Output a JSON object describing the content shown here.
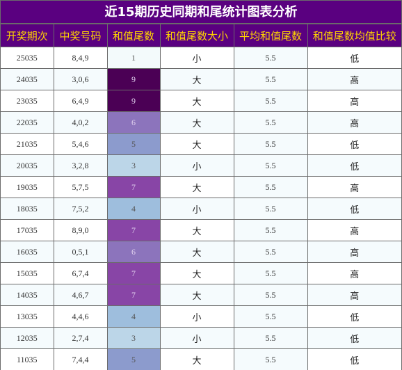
{
  "title": "近15期历史同期和尾统计图表分析",
  "headers": [
    "开奖期次",
    "中奖号码",
    "和值尾数",
    "和值尾数大小",
    "平均和值尾数",
    "和值尾数均值比较"
  ],
  "colors": {
    "header_bg": "#5a0080",
    "header_text": "#ffd400",
    "title_text": "#ffffff",
    "heat_scale": {
      "1": "#f3fafb",
      "3": "#bcd6e8",
      "4": "#9ebedd",
      "5": "#8c9bcd",
      "6": "#8c74bc",
      "7": "#8845a6",
      "9": "#4b0055"
    }
  },
  "chart_data": {
    "type": "table",
    "columns": [
      "开奖期次",
      "中奖号码",
      "和值尾数",
      "和值尾数大小",
      "平均和值尾数",
      "和值尾数均值比较"
    ],
    "rows": [
      [
        "25035",
        "8,4,9",
        "1",
        "小",
        "5.5",
        "低"
      ],
      [
        "24035",
        "3,0,6",
        "9",
        "大",
        "5.5",
        "高"
      ],
      [
        "23035",
        "6,4,9",
        "9",
        "大",
        "5.5",
        "高"
      ],
      [
        "22035",
        "4,0,2",
        "6",
        "大",
        "5.5",
        "高"
      ],
      [
        "21035",
        "5,4,6",
        "5",
        "大",
        "5.5",
        "低"
      ],
      [
        "20035",
        "3,2,8",
        "3",
        "小",
        "5.5",
        "低"
      ],
      [
        "19035",
        "5,7,5",
        "7",
        "大",
        "5.5",
        "高"
      ],
      [
        "18035",
        "7,5,2",
        "4",
        "小",
        "5.5",
        "低"
      ],
      [
        "17035",
        "8,9,0",
        "7",
        "大",
        "5.5",
        "高"
      ],
      [
        "16035",
        "0,5,1",
        "6",
        "大",
        "5.5",
        "高"
      ],
      [
        "15035",
        "6,7,4",
        "7",
        "大",
        "5.5",
        "高"
      ],
      [
        "14035",
        "4,6,7",
        "7",
        "大",
        "5.5",
        "高"
      ],
      [
        "13035",
        "4,4,6",
        "4",
        "小",
        "5.5",
        "低"
      ],
      [
        "12035",
        "2,7,4",
        "3",
        "小",
        "5.5",
        "低"
      ],
      [
        "11035",
        "7,4,4",
        "5",
        "大",
        "5.5",
        "低"
      ]
    ]
  }
}
